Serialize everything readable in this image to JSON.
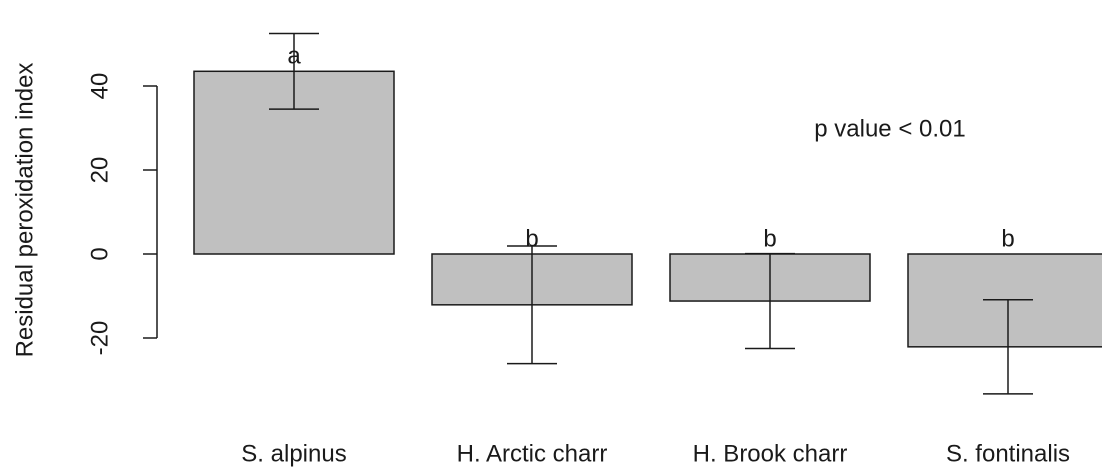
{
  "chart_data": {
    "type": "bar",
    "y_label": "Residual peroxidation index",
    "annotation": "p value < 0.01",
    "categories": [
      "S. alpinus",
      "H. Arctic charr",
      "H. Brook charr",
      "S. fontinalis"
    ],
    "values": [
      43.5,
      -12.1,
      -11.2,
      -22.1
    ],
    "errors": [
      9,
      14,
      11.3,
      11.2
    ],
    "letters": [
      "a",
      "b",
      "b",
      "b"
    ],
    "color": "#c0c0c0",
    "ylim": [
      -36,
      60
    ],
    "yticks": [
      -20,
      0,
      20,
      40
    ]
  }
}
